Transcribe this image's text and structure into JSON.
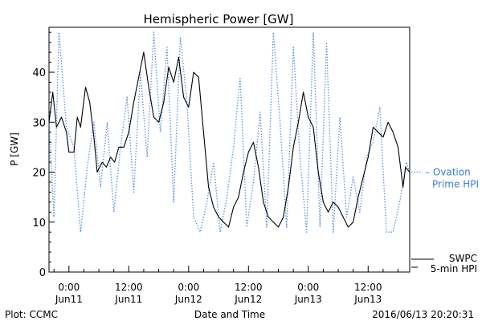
{
  "chart_data": {
    "type": "line",
    "title": "Hemispheric Power [GW]",
    "xlabel": "Date and Time",
    "ylabel": "P [GW]",
    "ylim": [
      0,
      49
    ],
    "xlim": [
      "2016-06-10 20:00",
      "2016-06-13 20:20"
    ],
    "grid": false,
    "yticks": [
      0,
      10,
      20,
      30,
      40
    ],
    "xticks": [
      {
        "t": "2016-06-11 00:00",
        "time": "0:00",
        "day": "Jun11"
      },
      {
        "t": "2016-06-11 12:00",
        "time": "12:00",
        "day": "Jun11"
      },
      {
        "t": "2016-06-12 00:00",
        "time": "0:00",
        "day": "Jun12"
      },
      {
        "t": "2016-06-12 12:00",
        "time": "12:00",
        "day": "Jun12"
      },
      {
        "t": "2016-06-13 00:00",
        "time": "0:00",
        "day": "Jun13"
      },
      {
        "t": "2016-06-13 12:00",
        "time": "12:00",
        "day": "Jun13"
      }
    ],
    "series": [
      {
        "name": "SWPC 5-min HPI",
        "legend_lines": [
          "SWPC",
          "5-min HPI"
        ],
        "color": "#000000",
        "style": "solid",
        "points": [
          [
            "2016-06-10 20:00",
            30
          ],
          [
            "2016-06-10 20:45",
            36
          ],
          [
            "2016-06-10 21:30",
            29
          ],
          [
            "2016-06-10 22:30",
            31
          ],
          [
            "2016-06-10 23:30",
            28
          ],
          [
            "2016-06-11 00:00",
            24
          ],
          [
            "2016-06-11 01:00",
            24
          ],
          [
            "2016-06-11 01:40",
            31
          ],
          [
            "2016-06-11 02:20",
            29
          ],
          [
            "2016-06-11 03:20",
            37
          ],
          [
            "2016-06-11 04:10",
            34
          ],
          [
            "2016-06-11 05:00",
            27
          ],
          [
            "2016-06-11 05:40",
            20
          ],
          [
            "2016-06-11 06:40",
            22
          ],
          [
            "2016-06-11 07:30",
            21
          ],
          [
            "2016-06-11 08:20",
            23
          ],
          [
            "2016-06-11 09:10",
            22
          ],
          [
            "2016-06-11 10:00",
            25
          ],
          [
            "2016-06-11 11:00",
            25
          ],
          [
            "2016-06-11 12:00",
            28
          ],
          [
            "2016-06-11 13:00",
            34
          ],
          [
            "2016-06-11 14:00",
            39
          ],
          [
            "2016-06-11 15:00",
            44
          ],
          [
            "2016-06-11 16:00",
            37
          ],
          [
            "2016-06-11 17:00",
            31
          ],
          [
            "2016-06-11 18:00",
            30
          ],
          [
            "2016-06-11 19:00",
            34
          ],
          [
            "2016-06-11 20:00",
            41
          ],
          [
            "2016-06-11 21:00",
            38
          ],
          [
            "2016-06-11 22:00",
            43
          ],
          [
            "2016-06-11 23:00",
            35
          ],
          [
            "2016-06-12 00:00",
            33
          ],
          [
            "2016-06-12 01:00",
            40
          ],
          [
            "2016-06-12 02:00",
            39
          ],
          [
            "2016-06-12 03:00",
            28
          ],
          [
            "2016-06-12 04:00",
            17
          ],
          [
            "2016-06-12 05:00",
            13
          ],
          [
            "2016-06-12 06:00",
            11
          ],
          [
            "2016-06-12 07:00",
            10
          ],
          [
            "2016-06-12 08:00",
            9
          ],
          [
            "2016-06-12 09:00",
            13
          ],
          [
            "2016-06-12 10:00",
            15
          ],
          [
            "2016-06-12 11:00",
            20
          ],
          [
            "2016-06-12 12:00",
            24
          ],
          [
            "2016-06-12 13:00",
            26
          ],
          [
            "2016-06-12 14:00",
            21
          ],
          [
            "2016-06-12 15:00",
            14
          ],
          [
            "2016-06-12 16:00",
            11
          ],
          [
            "2016-06-12 17:00",
            10
          ],
          [
            "2016-06-12 18:00",
            9
          ],
          [
            "2016-06-12 19:00",
            11
          ],
          [
            "2016-06-12 20:00",
            17
          ],
          [
            "2016-06-12 21:00",
            25
          ],
          [
            "2016-06-12 22:00",
            30
          ],
          [
            "2016-06-12 23:00",
            36
          ],
          [
            "2016-06-13 00:00",
            31
          ],
          [
            "2016-06-13 01:00",
            29
          ],
          [
            "2016-06-13 02:00",
            20
          ],
          [
            "2016-06-13 03:00",
            14
          ],
          [
            "2016-06-13 04:00",
            12
          ],
          [
            "2016-06-13 05:00",
            14
          ],
          [
            "2016-06-13 06:00",
            13
          ],
          [
            "2016-06-13 07:00",
            11
          ],
          [
            "2016-06-13 08:00",
            9
          ],
          [
            "2016-06-13 09:00",
            10
          ],
          [
            "2016-06-13 10:00",
            15
          ],
          [
            "2016-06-13 11:00",
            19
          ],
          [
            "2016-06-13 12:00",
            23
          ],
          [
            "2016-06-13 13:00",
            29
          ],
          [
            "2016-06-13 14:00",
            28
          ],
          [
            "2016-06-13 15:00",
            27
          ],
          [
            "2016-06-13 16:00",
            30
          ],
          [
            "2016-06-13 17:00",
            28
          ],
          [
            "2016-06-13 18:00",
            25
          ],
          [
            "2016-06-13 19:00",
            17
          ],
          [
            "2016-06-13 19:30",
            21
          ],
          [
            "2016-06-13 20:20",
            20
          ]
        ]
      },
      {
        "name": "Ovation Prime HPI",
        "legend_lines": [
          "Ovation",
          "Prime HPI"
        ],
        "color": "#3b7dd8",
        "style": "dotted",
        "points": [
          [
            "2016-06-10 20:00",
            30
          ],
          [
            "2016-06-10 21:00",
            11
          ],
          [
            "2016-06-10 22:00",
            48
          ],
          [
            "2016-06-10 23:30",
            29
          ],
          [
            "2016-06-11 01:00",
            25
          ],
          [
            "2016-06-11 02:20",
            8
          ],
          [
            "2016-06-11 03:40",
            21
          ],
          [
            "2016-06-11 05:00",
            30
          ],
          [
            "2016-06-11 06:20",
            17
          ],
          [
            "2016-06-11 07:40",
            30
          ],
          [
            "2016-06-11 09:00",
            12
          ],
          [
            "2016-06-11 10:20",
            25
          ],
          [
            "2016-06-11 11:40",
            35
          ],
          [
            "2016-06-11 13:00",
            16
          ],
          [
            "2016-06-11 14:20",
            40
          ],
          [
            "2016-06-11 15:40",
            23
          ],
          [
            "2016-06-11 17:00",
            48
          ],
          [
            "2016-06-11 18:20",
            28
          ],
          [
            "2016-06-11 19:40",
            45
          ],
          [
            "2016-06-11 21:00",
            14
          ],
          [
            "2016-06-11 22:20",
            47
          ],
          [
            "2016-06-11 23:40",
            34
          ],
          [
            "2016-06-12 01:00",
            11
          ],
          [
            "2016-06-12 02:20",
            8
          ],
          [
            "2016-06-12 03:40",
            14
          ],
          [
            "2016-06-12 05:00",
            22
          ],
          [
            "2016-06-12 06:20",
            8
          ],
          [
            "2016-06-12 07:40",
            15
          ],
          [
            "2016-06-12 09:00",
            25
          ],
          [
            "2016-06-12 10:20",
            39
          ],
          [
            "2016-06-12 11:40",
            9
          ],
          [
            "2016-06-12 13:00",
            18
          ],
          [
            "2016-06-12 14:20",
            32
          ],
          [
            "2016-06-12 15:40",
            9
          ],
          [
            "2016-06-12 17:00",
            48
          ],
          [
            "2016-06-12 18:20",
            30
          ],
          [
            "2016-06-12 19:40",
            9
          ],
          [
            "2016-06-12 21:00",
            45
          ],
          [
            "2016-06-12 22:20",
            23
          ],
          [
            "2016-06-12 23:40",
            8
          ],
          [
            "2016-06-13 01:00",
            48
          ],
          [
            "2016-06-13 02:20",
            9
          ],
          [
            "2016-06-13 03:40",
            46
          ],
          [
            "2016-06-13 05:00",
            8
          ],
          [
            "2016-06-13 06:20",
            31
          ],
          [
            "2016-06-13 07:40",
            11
          ],
          [
            "2016-06-13 09:00",
            19
          ],
          [
            "2016-06-13 10:20",
            12
          ],
          [
            "2016-06-13 11:40",
            23
          ],
          [
            "2016-06-13 13:00",
            26
          ],
          [
            "2016-06-13 14:20",
            33
          ],
          [
            "2016-06-13 15:40",
            8
          ],
          [
            "2016-06-13 17:00",
            8
          ],
          [
            "2016-06-13 18:20",
            14
          ],
          [
            "2016-06-13 19:40",
            22
          ],
          [
            "2016-06-13 20:20",
            20
          ]
        ]
      }
    ]
  },
  "footer": {
    "left": "Plot: CCMC",
    "center": "Date and Time",
    "right": "2016/06/13 20:20:31"
  }
}
